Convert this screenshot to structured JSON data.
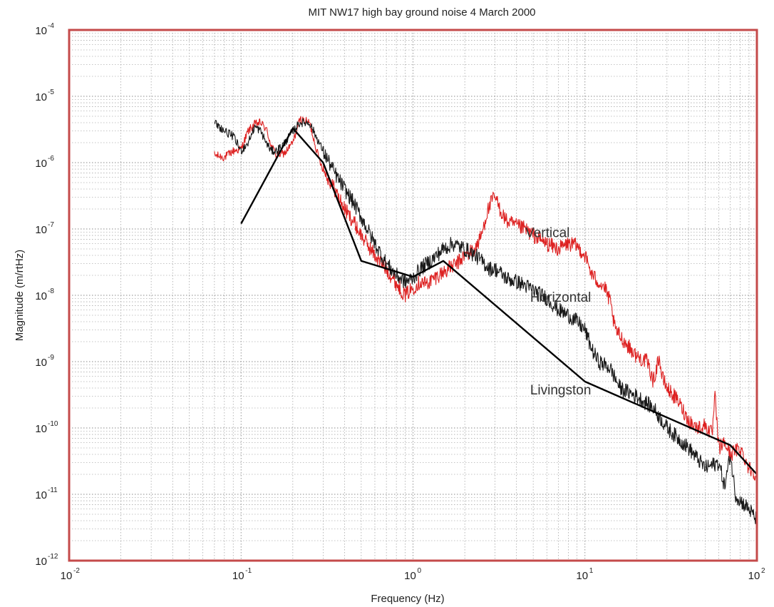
{
  "chart_data": {
    "type": "line",
    "title": "MIT NW17 high bay  ground noise  4 March 2000",
    "xlabel": "Frequency (Hz)",
    "ylabel": "Magnitude (m/rtHz)",
    "x_scale": "log",
    "y_scale": "log",
    "xlim": [
      0.01,
      100
    ],
    "ylim": [
      1e-12,
      0.0001
    ],
    "grid": true,
    "x_ticks": [
      {
        "base": "10",
        "exp": "-2",
        "value": 0.01
      },
      {
        "base": "10",
        "exp": "-1",
        "value": 0.1
      },
      {
        "base": "10",
        "exp": "0",
        "value": 1
      },
      {
        "base": "10",
        "exp": "1",
        "value": 10
      },
      {
        "base": "10",
        "exp": "2",
        "value": 100
      }
    ],
    "y_ticks": [
      {
        "base": "10",
        "exp": "-4",
        "value": 0.0001
      },
      {
        "base": "10",
        "exp": "-5",
        "value": 1e-05
      },
      {
        "base": "10",
        "exp": "-6",
        "value": 1e-06
      },
      {
        "base": "10",
        "exp": "-7",
        "value": 1e-07
      },
      {
        "base": "10",
        "exp": "-8",
        "value": 1e-08
      },
      {
        "base": "10",
        "exp": "-9",
        "value": 1e-09
      },
      {
        "base": "10",
        "exp": "-10",
        "value": 1e-10
      },
      {
        "base": "10",
        "exp": "-11",
        "value": 1e-11
      },
      {
        "base": "10",
        "exp": "-12",
        "value": 1e-12
      }
    ],
    "annotations": [
      {
        "text": "Vertical",
        "x": 4.5,
        "y": 7.5e-08
      },
      {
        "text": "Horizontal",
        "x": 4.8,
        "y": 8e-09
      },
      {
        "text": "Livingston",
        "x": 4.8,
        "y": 3.2e-10
      }
    ],
    "series": [
      {
        "id": "vertical",
        "color": "#dd2222",
        "noise": 0.09,
        "x": [
          0.07,
          0.08,
          0.09,
          0.1,
          0.11,
          0.12,
          0.13,
          0.14,
          0.15,
          0.16,
          0.18,
          0.2,
          0.22,
          0.25,
          0.28,
          0.3,
          0.35,
          0.4,
          0.45,
          0.5,
          0.6,
          0.7,
          0.8,
          0.9,
          1.0,
          1.1,
          1.2,
          1.4,
          1.6,
          1.8,
          2.0,
          2.3,
          2.5,
          2.7,
          2.9,
          3.0,
          3.2,
          3.5,
          4,
          4.5,
          5,
          6,
          7,
          8,
          9,
          10,
          11,
          12,
          13,
          14,
          15,
          17,
          20,
          23,
          25,
          27,
          28,
          30,
          35,
          40,
          45,
          50,
          55,
          57,
          60,
          65,
          70,
          80,
          90,
          100
        ],
        "y": [
          1.3e-06,
          1.2e-06,
          1.5e-06,
          1.6e-06,
          3e-06,
          3.8e-06,
          4e-06,
          3.2e-06,
          1.8e-06,
          1.3e-06,
          1.4e-06,
          2e-06,
          4.5e-06,
          4e-06,
          1.3e-06,
          8e-07,
          4e-07,
          2e-07,
          1.3e-07,
          8e-08,
          4e-08,
          2.5e-08,
          1.5e-08,
          1e-08,
          1.3e-08,
          1.6e-08,
          1.5e-08,
          2e-08,
          2.5e-08,
          3e-08,
          4e-08,
          5e-08,
          8e-08,
          1.8e-07,
          2.8e-07,
          3e-07,
          2e-07,
          1.3e-07,
          1.1e-07,
          1e-07,
          8e-08,
          6e-08,
          5e-08,
          6e-08,
          5.5e-08,
          4e-08,
          2e-08,
          1.6e-08,
          1.3e-08,
          8e-09,
          3e-09,
          2e-09,
          1.2e-09,
          1e-09,
          5e-10,
          1.2e-09,
          6e-10,
          4e-10,
          2.5e-10,
          1.3e-10,
          1e-10,
          1.1e-10,
          8e-11,
          3e-10,
          5e-11,
          6e-11,
          4e-11,
          5e-11,
          2.5e-11,
          2e-11
        ]
      },
      {
        "id": "horizontal",
        "color": "#1a1a1a",
        "noise": 0.09,
        "x": [
          0.07,
          0.08,
          0.09,
          0.1,
          0.11,
          0.12,
          0.13,
          0.14,
          0.15,
          0.16,
          0.18,
          0.2,
          0.22,
          0.25,
          0.3,
          0.35,
          0.4,
          0.45,
          0.5,
          0.6,
          0.7,
          0.8,
          0.9,
          1.0,
          1.1,
          1.3,
          1.5,
          1.7,
          2.0,
          2.3,
          2.6,
          2.8,
          3.0,
          3.2,
          3.5,
          4,
          4.5,
          5,
          6,
          7,
          8,
          9,
          10,
          11,
          12,
          14,
          16,
          20,
          25,
          30,
          40,
          50,
          60,
          65,
          70,
          75,
          80,
          90,
          100
        ],
        "y": [
          4e-06,
          3e-06,
          2.5e-06,
          1.5e-06,
          2e-06,
          3.5e-06,
          3e-06,
          2e-06,
          1.5e-06,
          1.5e-06,
          2e-06,
          3e-06,
          4e-06,
          4e-06,
          1.5e-06,
          7e-07,
          4e-07,
          2.5e-07,
          1.5e-07,
          6e-08,
          3e-08,
          2e-08,
          1.6e-08,
          1.8e-08,
          2.5e-08,
          3.5e-08,
          5e-08,
          6e-08,
          5e-08,
          4e-08,
          3e-08,
          2.5e-08,
          2.5e-08,
          2.2e-08,
          1.8e-08,
          1.6e-08,
          1.4e-08,
          1.2e-08,
          9e-09,
          6e-09,
          5e-09,
          4e-09,
          3e-09,
          1.5e-09,
          1e-09,
          8e-10,
          4e-10,
          3e-10,
          2e-10,
          1e-10,
          5e-11,
          2.5e-11,
          3e-11,
          1.3e-11,
          4e-11,
          1e-11,
          8e-12,
          6e-12,
          4e-12
        ]
      },
      {
        "id": "livingston",
        "color": "#000000",
        "noise": 0,
        "x": [
          0.1,
          0.2,
          0.3,
          0.5,
          1.0,
          1.5,
          10,
          70,
          100
        ],
        "y": [
          1.2e-07,
          3.3e-06,
          1e-06,
          3.3e-08,
          1.9e-08,
          3.3e-08,
          5e-10,
          5.5e-11,
          2e-11
        ]
      }
    ]
  }
}
